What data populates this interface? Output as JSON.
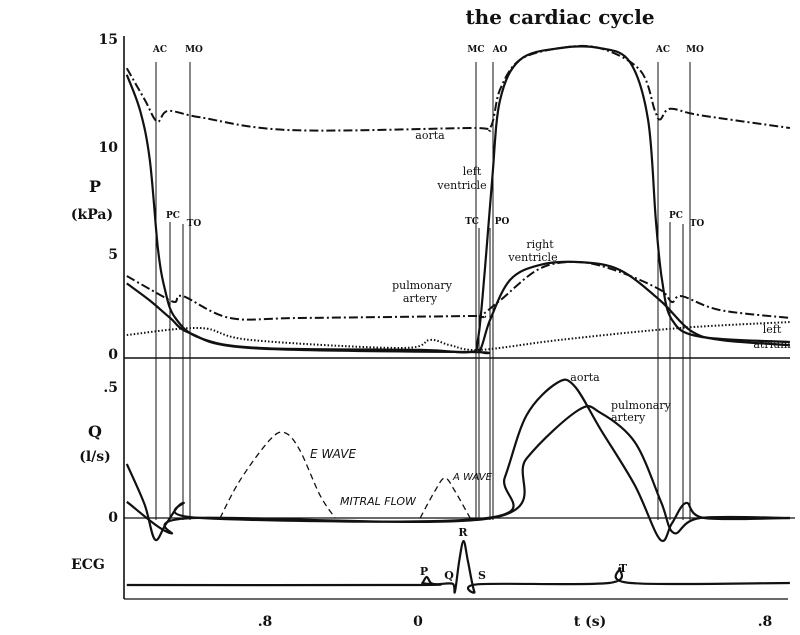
{
  "chart_data": {
    "type": "line",
    "title": "the cardiac cycle",
    "xlabel": "t (s)",
    "x_tick_labels": [
      ".8",
      "0",
      ".8"
    ],
    "xlim": [
      -0.671,
      0.857
    ],
    "panels": {
      "pressure": {
        "ylabel": "P",
        "yunit": "(kPa)",
        "ylim": [
          0,
          15
        ],
        "y_tick_labels": [
          "15",
          "10",
          "5",
          "0"
        ],
        "series": [
          {
            "name": "aorta",
            "style": "dashdot",
            "points": [
              [
                -0.671,
                13.6
              ],
              [
                -0.629,
                12.1
              ],
              [
                -0.601,
                11.1
              ],
              [
                -0.576,
                11.6
              ],
              [
                -0.502,
                11.3
              ],
              [
                -0.295,
                10.7
              ],
              [
                0.12,
                10.8
              ],
              [
                0.166,
                10.8
              ],
              [
                0.189,
                12.6
              ],
              [
                0.235,
                14.0
              ],
              [
                0.327,
                14.55
              ],
              [
                0.419,
                14.55
              ],
              [
                0.512,
                13.5
              ],
              [
                0.546,
                11.6
              ],
              [
                0.558,
                11.2
              ],
              [
                0.581,
                11.7
              ],
              [
                0.65,
                11.4
              ],
              [
                0.857,
                10.8
              ]
            ]
          },
          {
            "name": "left ventricle",
            "style": "solid",
            "points": [
              [
                -0.671,
                13.3
              ],
              [
                -0.64,
                11.6
              ],
              [
                -0.618,
                9.3
              ],
              [
                -0.599,
                5.1
              ],
              [
                -0.583,
                3.2
              ],
              [
                -0.56,
                1.9
              ],
              [
                -0.502,
                0.94
              ],
              [
                -0.364,
                0.47
              ],
              [
                0.005,
                0.38
              ],
              [
                0.12,
                0.28
              ],
              [
                0.138,
                0.85
              ],
              [
                0.154,
                4.1
              ],
              [
                0.171,
                8.4
              ],
              [
                0.189,
                12.1
              ],
              [
                0.235,
                14.0
              ],
              [
                0.327,
                14.55
              ],
              [
                0.419,
                14.55
              ],
              [
                0.488,
                13.9
              ],
              [
                0.53,
                11.2
              ],
              [
                0.548,
                6.5
              ],
              [
                0.562,
                3.7
              ],
              [
                0.585,
                1.8
              ],
              [
                0.65,
                1.0
              ],
              [
                0.857,
                0.75
              ]
            ]
          },
          {
            "name": "pulmonary artery",
            "style": "dashdot",
            "points": [
              [
                -0.671,
                3.85
              ],
              [
                -0.594,
                2.96
              ],
              [
                -0.56,
                2.63
              ],
              [
                -0.541,
                2.9
              ],
              [
                -0.433,
                1.88
              ],
              [
                -0.272,
                1.88
              ],
              [
                0.12,
                1.97
              ],
              [
                0.143,
                1.97
              ],
              [
                0.189,
                2.7
              ],
              [
                0.281,
                4.2
              ],
              [
                0.373,
                4.5
              ],
              [
                0.465,
                4.04
              ],
              [
                0.558,
                3.2
              ],
              [
                0.585,
                2.63
              ],
              [
                0.608,
                2.9
              ],
              [
                0.696,
                2.25
              ],
              [
                0.857,
                1.88
              ]
            ]
          },
          {
            "name": "right ventricle",
            "style": "solid",
            "points": [
              [
                -0.671,
                3.5
              ],
              [
                -0.618,
                2.7
              ],
              [
                -0.571,
                1.88
              ],
              [
                -0.525,
                1.17
              ],
              [
                -0.387,
                0.47
              ],
              [
                0.12,
                0.28
              ],
              [
                0.143,
                0.38
              ],
              [
                0.166,
                1.78
              ],
              [
                0.212,
                3.66
              ],
              [
                0.281,
                4.37
              ],
              [
                0.373,
                4.5
              ],
              [
                0.465,
                4.13
              ],
              [
                0.558,
                2.7
              ],
              [
                0.627,
                1.3
              ],
              [
                0.696,
                0.85
              ],
              [
                0.857,
                0.6
              ]
            ]
          },
          {
            "name": "left atrium",
            "style": "dotted",
            "points": [
              [
                -0.671,
                1.08
              ],
              [
                -0.502,
                1.41
              ],
              [
                -0.387,
                0.85
              ],
              [
                -0.041,
                0.47
              ],
              [
                0.028,
                0.85
              ],
              [
                0.074,
                0.6
              ],
              [
                0.143,
                0.38
              ],
              [
                0.327,
                0.85
              ],
              [
                0.604,
                1.41
              ],
              [
                0.857,
                1.69
              ]
            ]
          }
        ]
      },
      "flow": {
        "ylabel": "Q",
        "yunit": "(l/s)",
        "ylim": [
          -0.1,
          0.5
        ],
        "y_tick_labels": [
          ".5",
          "0"
        ],
        "series": [
          {
            "name": "aorta",
            "style": "solid",
            "points": [
              [
                -0.671,
                0.2
              ],
              [
                -0.63,
                0.05
              ],
              [
                -0.606,
                -0.08
              ],
              [
                -0.58,
                -0.02
              ],
              [
                -0.541,
                0.056
              ],
              [
                -0.5,
                0
              ],
              [
                0.16,
                0
              ],
              [
                0.2,
                0.15
              ],
              [
                0.25,
                0.38
              ],
              [
                0.32,
                0.5
              ],
              [
                0.36,
                0.49
              ],
              [
                0.42,
                0.33
              ],
              [
                0.5,
                0.12
              ],
              [
                0.558,
                -0.08
              ],
              [
                0.585,
                -0.02
              ],
              [
                0.618,
                0.056
              ],
              [
                0.66,
                0
              ],
              [
                0.857,
                0
              ]
            ]
          },
          {
            "name": "pulmonary artery",
            "style": "solid",
            "points": [
              [
                -0.671,
                0.06
              ],
              [
                -0.571,
                -0.056
              ],
              [
                -0.52,
                0
              ],
              [
                0.17,
                0
              ],
              [
                0.25,
                0.22
              ],
              [
                0.37,
                0.4
              ],
              [
                0.42,
                0.39
              ],
              [
                0.5,
                0.28
              ],
              [
                0.56,
                0.06
              ],
              [
                0.59,
                -0.056
              ],
              [
                0.65,
                0
              ],
              [
                0.857,
                0
              ]
            ]
          },
          {
            "name": "mitral flow E wave",
            "style": "dashed",
            "points": [
              [
                -0.456,
                0
              ],
              [
                -0.41,
                0.14
              ],
              [
                -0.341,
                0.29
              ],
              [
                -0.306,
                0.315
              ],
              [
                -0.272,
                0.25
              ],
              [
                -0.226,
                0.085
              ],
              [
                -0.191,
                0
              ]
            ]
          },
          {
            "name": "mitral flow A wave",
            "style": "dashed",
            "points": [
              [
                0.005,
                0
              ],
              [
                0.039,
                0.1
              ],
              [
                0.062,
                0.148
              ],
              [
                0.085,
                0.1
              ],
              [
                0.12,
                0
              ]
            ]
          }
        ]
      },
      "ecg": {
        "ylabel": "ECG",
        "series": [
          {
            "name": "ECG",
            "style": "solid",
            "points": [
              [
                -0.671,
                0
              ],
              [
                0.0,
                0
              ],
              [
                0.01,
                0.05
              ],
              [
                0.02,
                0.2
              ],
              [
                0.03,
                0.05
              ],
              [
                0.045,
                0.02
              ],
              [
                0.08,
                0.03
              ],
              [
                0.085,
                -0.17
              ],
              [
                0.095,
                0.6
              ],
              [
                0.105,
                1.1
              ],
              [
                0.115,
                0.6
              ],
              [
                0.13,
                -0.17
              ],
              [
                0.14,
                0.02
              ],
              [
                0.44,
                0.05
              ],
              [
                0.465,
                0.42
              ],
              [
                0.49,
                0.05
              ],
              [
                0.857,
                0.05
              ]
            ]
          }
        ]
      }
    },
    "valve_events": {
      "left": [
        "AC",
        "MO",
        "PC",
        "TO"
      ],
      "middle": [
        "MC",
        "AO",
        "TC",
        "PO"
      ],
      "right": [
        "AC",
        "MO",
        "PC",
        "TO"
      ]
    },
    "annotations": {
      "aorta_p": "aorta",
      "lv_1": "left",
      "lv_2": "ventricle",
      "rv_1": "right",
      "rv_2": "ventricle",
      "pa_1": "pulmonary",
      "pa_2": "artery",
      "la_1": "left",
      "la_2": "atrium",
      "aorta_q": "aorta",
      "paq_1": "pulmonary",
      "paq_2": "artery",
      "e_wave": "E WAVE",
      "a_wave": "A WAVE",
      "mitral": "MITRAL FLOW",
      "ecg_p": "P",
      "ecg_q": "Q",
      "ecg_r": "R",
      "ecg_s": "S",
      "ecg_t": "T"
    }
  }
}
